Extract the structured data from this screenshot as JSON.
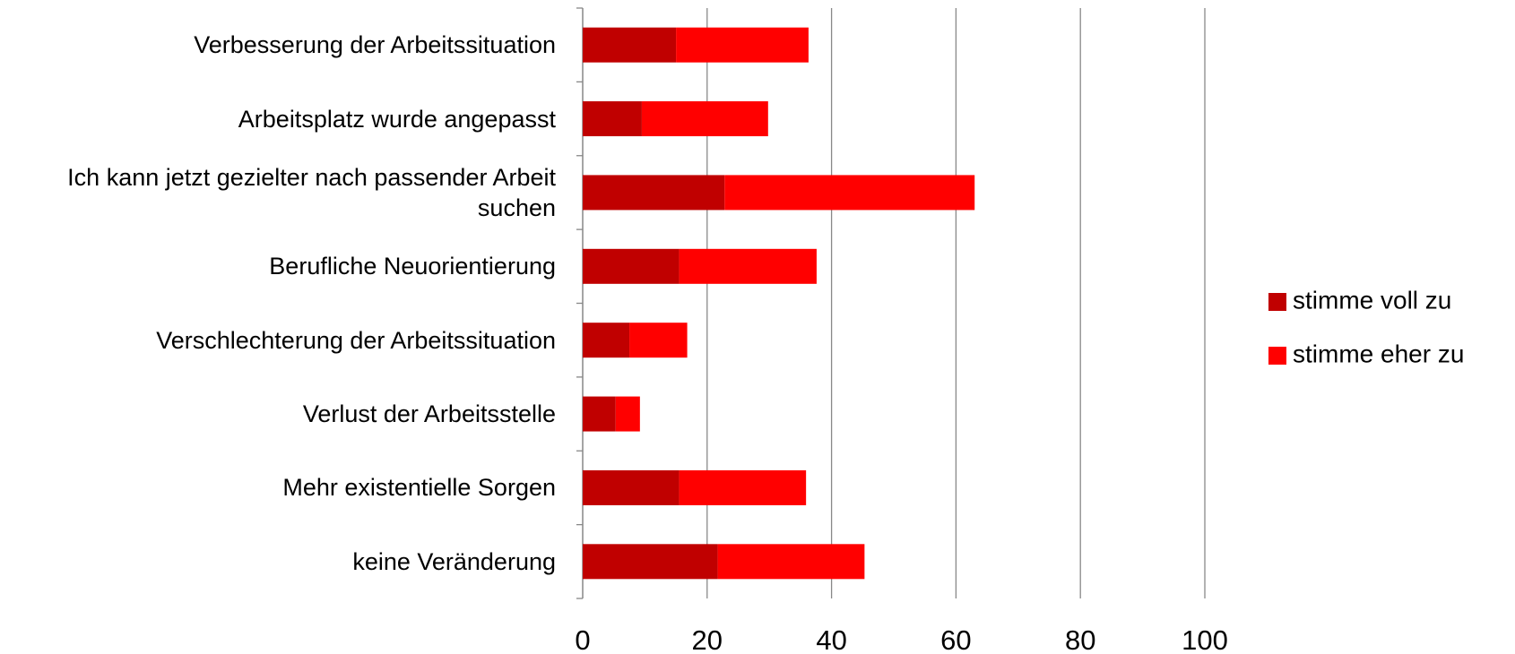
{
  "chart_data": {
    "type": "bar",
    "orientation": "horizontal",
    "stacked": true,
    "categories": [
      "Verbesserung der Arbeitssituation",
      "Arbeitsplatz wurde angepasst",
      "Ich kann jetzt gezielter nach passender Arbeit suchen",
      "Berufliche Neuorientierung",
      "Verschlechterung der Arbeitssituation",
      "Verlust der Arbeitsstelle",
      "Mehr existentielle Sorgen",
      "keine Veränderung"
    ],
    "series": [
      {
        "name": "stimme voll zu",
        "color": "#c00000",
        "values": [
          15,
          9.5,
          22.8,
          15.5,
          7.5,
          5.3,
          15.5,
          21.7
        ]
      },
      {
        "name": "stimme eher zu",
        "color": "#ff0000",
        "values": [
          21.3,
          20.3,
          40.2,
          22.1,
          9.3,
          3.9,
          20.4,
          23.6
        ]
      }
    ],
    "xlim": [
      0,
      100
    ],
    "xticks": [
      0,
      20,
      40,
      60,
      80,
      100
    ],
    "grid": true,
    "legend": "right"
  }
}
